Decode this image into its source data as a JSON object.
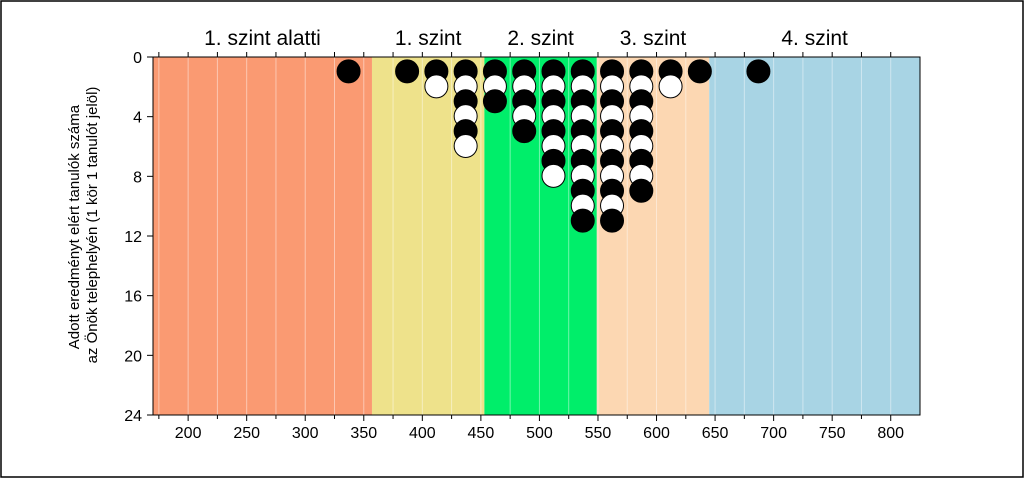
{
  "chart_data": {
    "type": "scatter",
    "ylabel_lines": [
      "Adott eredményt elért tanulók száma",
      "az Önök telephelyén (1 kör 1 tanulót jelöl)"
    ],
    "xlim": [
      170,
      825
    ],
    "ylim": [
      0,
      24
    ],
    "y_inverted": true,
    "x_ticks": [
      200,
      250,
      300,
      350,
      400,
      450,
      500,
      550,
      600,
      650,
      700,
      750,
      800
    ],
    "y_ticks": [
      0,
      4,
      8,
      12,
      16,
      20,
      24
    ],
    "grid": "vertical minor lines every 25",
    "levels": [
      {
        "label": "1. szint alatti",
        "x_start": 170,
        "x_end": 357,
        "color": "#FA9A72"
      },
      {
        "label": "1. szint",
        "x_start": 357,
        "x_end": 453,
        "color": "#EEE28B"
      },
      {
        "label": "2. szint",
        "x_start": 453,
        "x_end": 549,
        "color": "#00EE6A"
      },
      {
        "label": "3. szint",
        "x_start": 549,
        "x_end": 645,
        "color": "#FCD7B2"
      },
      {
        "label": "4. szint",
        "x_start": 645,
        "x_end": 825,
        "color": "#A8D4E4"
      }
    ],
    "marker_colors": {
      "dark": "#000000",
      "light": "#ffffff"
    },
    "columns": [
      {
        "x": 337,
        "count": 1
      },
      {
        "x": 387,
        "count": 1
      },
      {
        "x": 412,
        "count": 2
      },
      {
        "x": 437,
        "count": 6
      },
      {
        "x": 462,
        "count": 3
      },
      {
        "x": 487,
        "count": 5
      },
      {
        "x": 512,
        "count": 8
      },
      {
        "x": 537,
        "count": 11
      },
      {
        "x": 562,
        "count": 11
      },
      {
        "x": 587,
        "count": 9
      },
      {
        "x": 612,
        "count": 2
      },
      {
        "x": 637,
        "count": 1
      },
      {
        "x": 687,
        "count": 1
      }
    ]
  }
}
